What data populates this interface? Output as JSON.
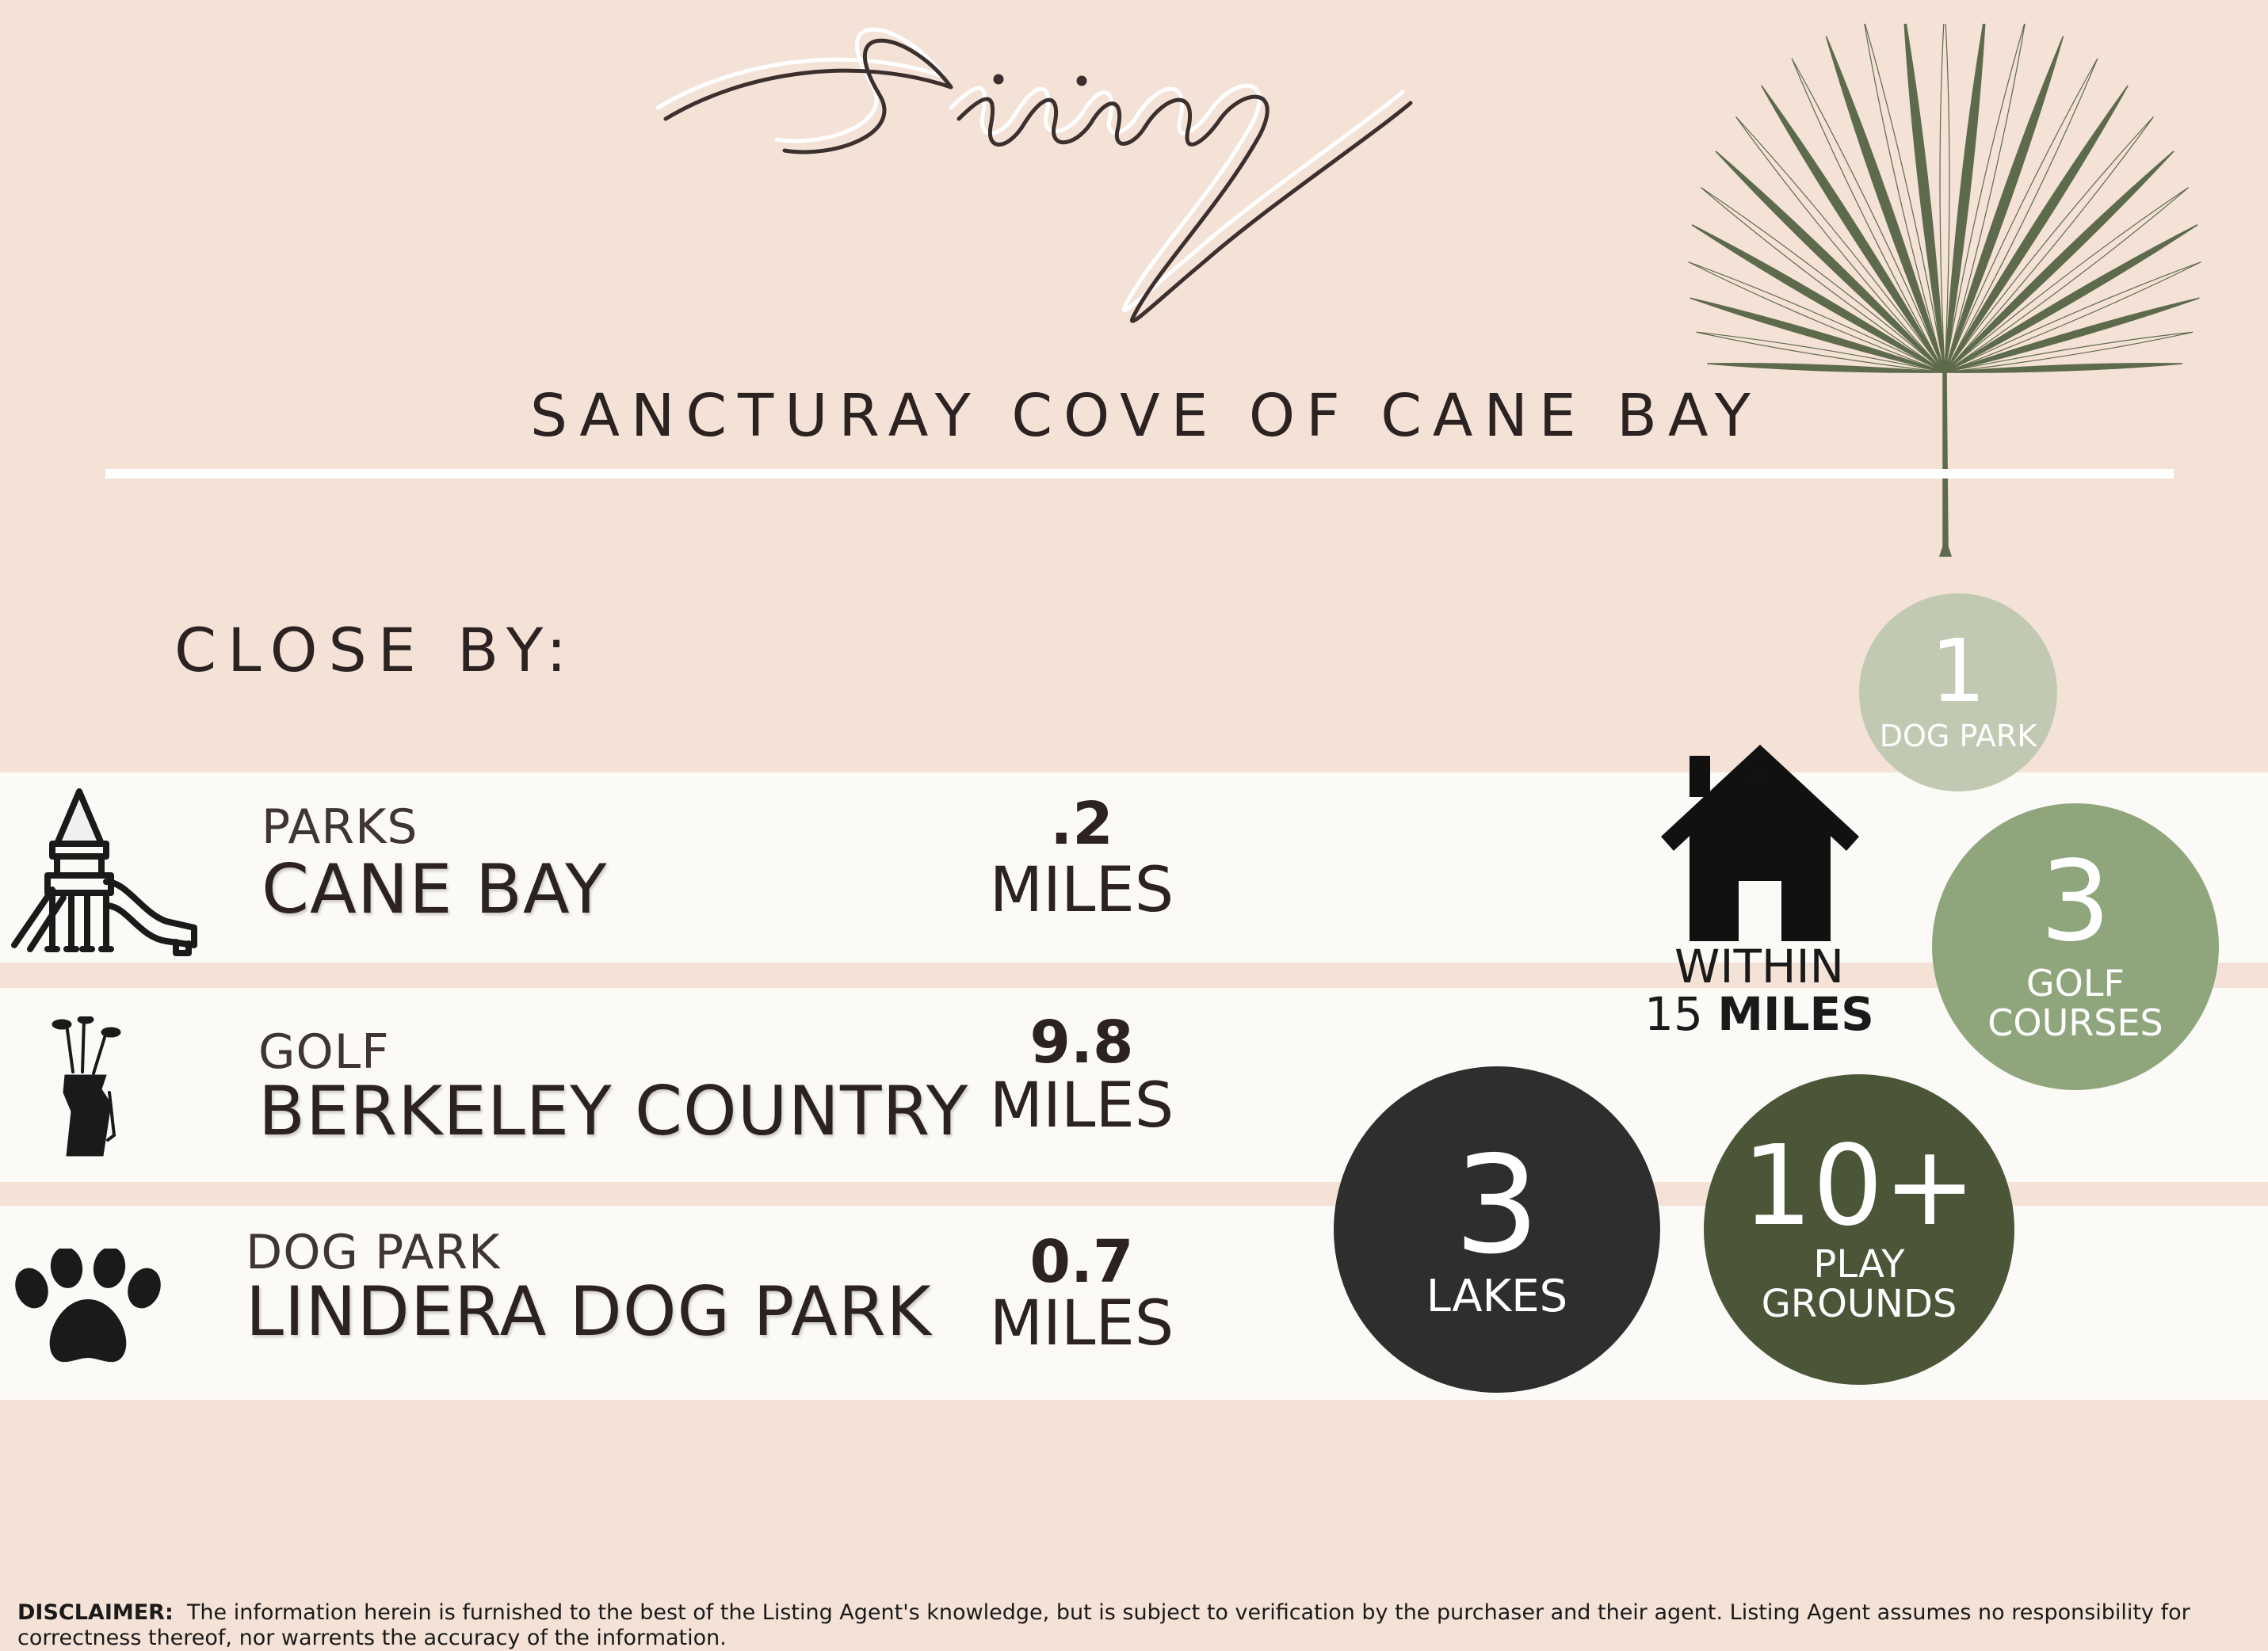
{
  "header": {
    "script_title": "Living",
    "subtitle": "SANCTURAY COVE OF CANE BAY"
  },
  "close_by": {
    "heading": "CLOSE BY:",
    "rows": [
      {
        "icon": "playground-icon",
        "category": "PARKS",
        "name": "CANE BAY",
        "distance": ".2",
        "unit": "MILES"
      },
      {
        "icon": "golf-bag-icon",
        "category": "GOLF",
        "name": "BERKELEY COUNTRY",
        "distance": "9.8",
        "unit": "MILES"
      },
      {
        "icon": "paw-print-icon",
        "category": "DOG PARK",
        "name": "LINDERA DOG PARK",
        "distance": "0.7",
        "unit": "MILES"
      }
    ]
  },
  "within": {
    "icon": "house-icon",
    "label": "WITHIN",
    "count": "15",
    "unit": "MILES"
  },
  "stats": [
    {
      "number": "1",
      "label": "DOG PARK",
      "color": "#c2c9b3"
    },
    {
      "number": "3",
      "label": "GOLF COURSES",
      "color": "#8fa57c"
    },
    {
      "number": "3",
      "label": "LAKES",
      "color": "#2e2e2e"
    },
    {
      "number": "10+",
      "label": "PLAY GROUNDS",
      "color": "#4b5537"
    }
  ],
  "disclaimer": {
    "label": "DISCLAIMER:",
    "text": "The information herein is furnished to the best of the Listing Agent's knowledge, but is subject to verification by the purchaser and their agent. Listing Agent assumes no responsibility for correctness thereof, nor warrents the accuracy of the information."
  },
  "colors": {
    "background": "#f4e2d6",
    "band": "#fcfaf7",
    "text": "#2b2221",
    "leaf": "#5e6a4c"
  }
}
